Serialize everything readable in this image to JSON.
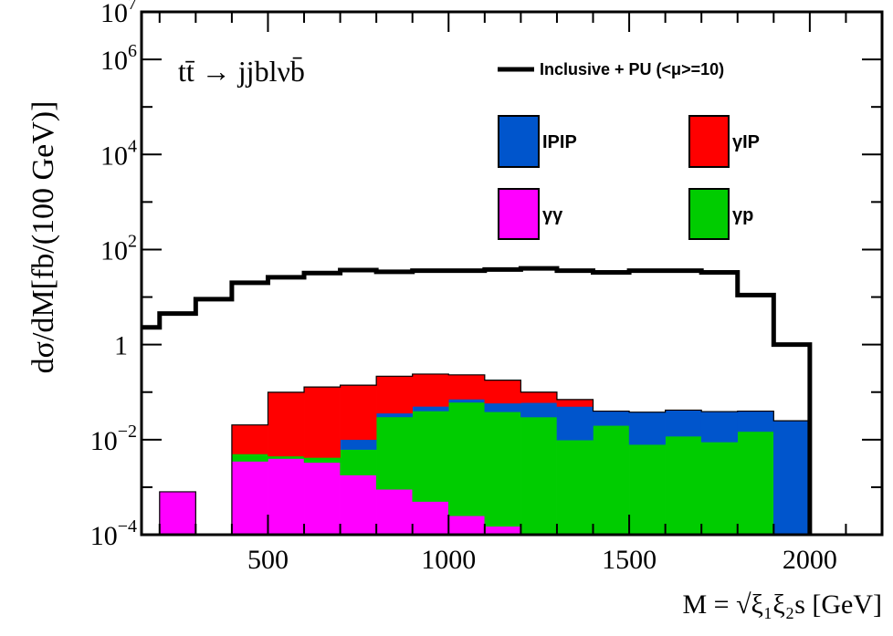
{
  "chart_data": {
    "type": "bar",
    "title": "",
    "process_label": "tt̄ → jjblνb̄",
    "xlabel": "M = √ξ₁ξ₂s [GeV]",
    "ylabel": "dσ/dM[fb/(100 GeV)]",
    "xlim": [
      150,
      2200
    ],
    "ylim": [
      0.0001,
      10000000
    ],
    "y_scale": "log",
    "grid": false,
    "stacked": true,
    "bin_edges": [
      150,
      200,
      300,
      400,
      500,
      600,
      700,
      800,
      900,
      1000,
      1100,
      1200,
      1300,
      1400,
      1500,
      1600,
      1700,
      1800,
      1900,
      2000
    ],
    "x_ticks": [
      "500",
      "1000",
      "1500",
      "2000"
    ],
    "x_tick_values": [
      500,
      1000,
      1500,
      2000
    ],
    "y_tick_labels": [
      {
        "mantissa": "10",
        "exp": "7",
        "value": 10000000
      },
      {
        "mantissa": "10",
        "exp": "6",
        "value": 1000000
      },
      {
        "mantissa": "10",
        "exp": "4",
        "value": 10000
      },
      {
        "mantissa": "10",
        "exp": "2",
        "value": 100
      },
      {
        "mantissa": "1",
        "exp": "",
        "value": 1
      },
      {
        "mantissa": "10",
        "exp": "−2",
        "value": 0.01
      },
      {
        "mantissa": "10",
        "exp": "−4",
        "value": 0.0001
      }
    ],
    "legend_placement": "top-right",
    "series": [
      {
        "name": "γγ",
        "color": "#ff00ff",
        "values": [
          0,
          0.0008,
          0,
          0.0035,
          0.004,
          0.0033,
          0.0018,
          0.0009,
          0.0005,
          0.00025,
          0.00015,
          0,
          0,
          0,
          0,
          0,
          0,
          0,
          0
        ]
      },
      {
        "name": "γp",
        "color": "#00cc00",
        "values": [
          0,
          0,
          0,
          0.0015,
          0.0005,
          0.0009,
          0.0044,
          0.0291,
          0.0395,
          0.0607,
          0.0383,
          0.0299,
          0.0098,
          0.0198,
          0.0079,
          0.0118,
          0.0089,
          0.0148,
          0
        ]
      },
      {
        "name": "IPIP",
        "color": "#0055cc",
        "values": [
          0,
          0,
          0,
          0,
          0,
          0,
          0.0038,
          0.006,
          0.01,
          0.01,
          0.02,
          0.03,
          0.04,
          0.02,
          0.03,
          0.03,
          0.03,
          0.025,
          0.025
        ]
      },
      {
        "name": "γIP",
        "color": "#ff0000",
        "values": [
          0,
          0,
          0,
          0.0154,
          0.095,
          0.124,
          0.13,
          0.18,
          0.19,
          0.16,
          0.12,
          0.04,
          0.02,
          0,
          0,
          0,
          0,
          0,
          0
        ]
      }
    ],
    "inclusive": {
      "name": "Inclusive + PU (<μ>=10)",
      "color": "#000000",
      "values": [
        2.3,
        4.5,
        9,
        20,
        26,
        32,
        37,
        34,
        36,
        36,
        38,
        40,
        36,
        33,
        36,
        36,
        33,
        11,
        1
      ]
    }
  }
}
